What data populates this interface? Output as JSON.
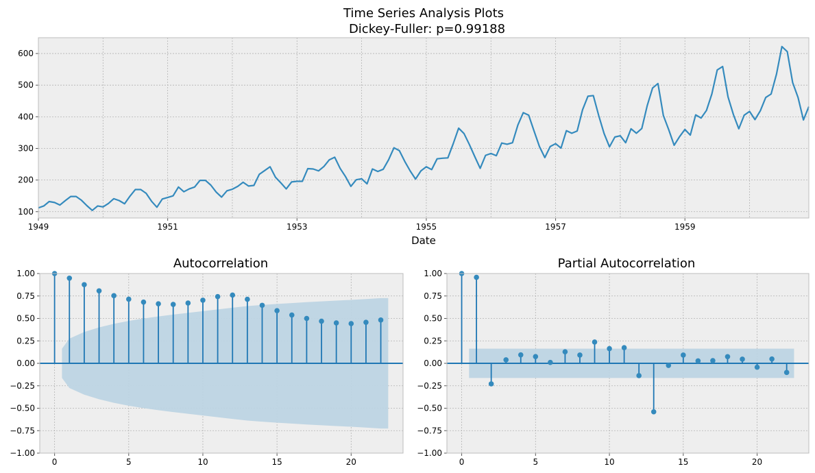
{
  "figure": {
    "title_line1": "Time Series Analysis Plots",
    "title_line2": "Dickey-Fuller: p=0.99188",
    "background": "#ffffff",
    "axes_background": "#eeeeee",
    "grid_color": "#b2b2b2",
    "spine_color": "#bcbcbc"
  },
  "chart_data": [
    {
      "type": "line",
      "title": "",
      "xlabel": "Date",
      "ylabel": "",
      "color": "#348abd",
      "x_start_year": 1949,
      "x_end_year": 1961,
      "xlim": [
        1949,
        1960.9167
      ],
      "ylim": [
        80,
        650
      ],
      "grid": true,
      "xticks": [
        "1949",
        "1951",
        "1953",
        "1955",
        "1957",
        "1959"
      ],
      "yticks": [
        "100",
        "200",
        "300",
        "400",
        "500",
        "600"
      ],
      "series": [
        {
          "x_frequency": "monthly",
          "values": [
            112,
            118,
            132,
            129,
            121,
            135,
            148,
            148,
            136,
            119,
            104,
            118,
            115,
            126,
            141,
            135,
            125,
            149,
            170,
            170,
            158,
            133,
            114,
            140,
            145,
            150,
            178,
            163,
            172,
            178,
            199,
            199,
            184,
            162,
            146,
            166,
            171,
            180,
            193,
            181,
            183,
            218,
            230,
            242,
            209,
            191,
            172,
            194,
            196,
            196,
            236,
            235,
            229,
            243,
            264,
            272,
            237,
            211,
            180,
            201,
            204,
            188,
            235,
            227,
            234,
            264,
            302,
            293,
            259,
            229,
            203,
            229,
            242,
            233,
            267,
            269,
            270,
            315,
            364,
            347,
            312,
            274,
            237,
            278,
            284,
            277,
            317,
            313,
            318,
            374,
            413,
            405,
            355,
            306,
            271,
            306,
            315,
            301,
            356,
            348,
            355,
            422,
            465,
            467,
            404,
            347,
            305,
            336,
            340,
            318,
            362,
            348,
            363,
            435,
            491,
            505,
            404,
            359,
            310,
            337,
            360,
            342,
            406,
            396,
            420,
            472,
            548,
            559,
            463,
            407,
            362,
            405,
            417,
            391,
            419,
            461,
            472,
            535,
            622,
            606,
            508,
            461,
            390,
            432
          ]
        }
      ]
    },
    {
      "type": "stem",
      "title": "Autocorrelation",
      "xlabel": "",
      "ylabel": "",
      "color": "#1f77b4",
      "band_color": "#bdd4e3",
      "xlim": [
        -1,
        23.5
      ],
      "ylim": [
        -1,
        1
      ],
      "grid": true,
      "xticks": [
        "0",
        "5",
        "10",
        "15",
        "20"
      ],
      "yticks": [
        "−1.00",
        "−0.75",
        "−0.50",
        "−0.25",
        "0.00",
        "0.25",
        "0.50",
        "0.75",
        "1.00"
      ],
      "lags": [
        0,
        1,
        2,
        3,
        4,
        5,
        6,
        7,
        8,
        9,
        10,
        11,
        12,
        13,
        14,
        15,
        16,
        17,
        18,
        19,
        20,
        21,
        22
      ],
      "values": [
        1.0,
        0.948,
        0.876,
        0.807,
        0.753,
        0.714,
        0.682,
        0.663,
        0.656,
        0.671,
        0.703,
        0.743,
        0.76,
        0.713,
        0.646,
        0.586,
        0.538,
        0.5,
        0.469,
        0.45,
        0.442,
        0.457,
        0.482
      ],
      "confidence_band": [
        0.163,
        0.275,
        0.349,
        0.4,
        0.44,
        0.472,
        0.499,
        0.522,
        0.543,
        0.562,
        0.581,
        0.6,
        0.619,
        0.637,
        0.65,
        0.661,
        0.671,
        0.681,
        0.69,
        0.698,
        0.706,
        0.716,
        0.726
      ],
      "band_start_lag": 0.5,
      "band_end_lag": 22.5
    },
    {
      "type": "stem",
      "title": "Partial Autocorrelation",
      "xlabel": "",
      "ylabel": "",
      "color": "#1f77b4",
      "band_color": "#bdd4e3",
      "xlim": [
        -1,
        23.5
      ],
      "ylim": [
        -1,
        1
      ],
      "grid": true,
      "xticks": [
        "0",
        "5",
        "10",
        "15",
        "20"
      ],
      "yticks": [
        "−1.00",
        "−0.75",
        "−0.50",
        "−0.25",
        "0.00",
        "0.25",
        "0.50",
        "0.75",
        "1.00"
      ],
      "lags": [
        0,
        1,
        2,
        3,
        4,
        5,
        6,
        7,
        8,
        9,
        10,
        11,
        12,
        13,
        14,
        15,
        16,
        17,
        18,
        19,
        20,
        21,
        22
      ],
      "values": [
        1.0,
        0.958,
        -0.229,
        0.039,
        0.094,
        0.075,
        0.01,
        0.128,
        0.092,
        0.237,
        0.164,
        0.174,
        -0.137,
        -0.54,
        -0.023,
        0.092,
        0.027,
        0.03,
        0.074,
        0.046,
        -0.043,
        0.048,
        -0.102
      ],
      "confidence_band": [
        0.163
      ],
      "band_start_lag": 0.5,
      "band_end_lag": 22.5
    }
  ]
}
